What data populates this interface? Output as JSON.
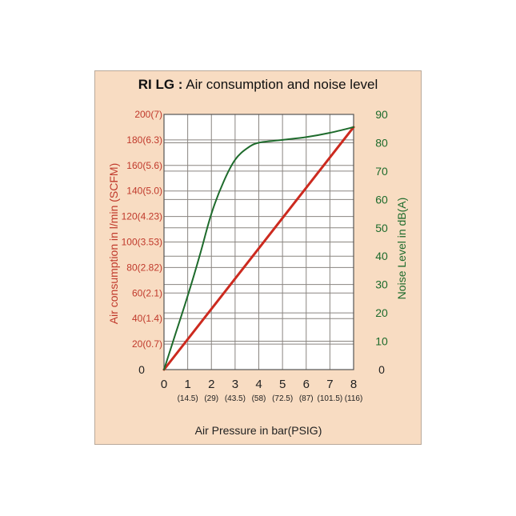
{
  "chart_data": {
    "type": "line",
    "title_bold": "RI LG :",
    "title_rest": "Air consumption and noise level",
    "xlabel": "Air  Pressure in bar(PSIG)",
    "ylabel_left": "Air  consumption in l/min (SCFM)",
    "ylabel_right": "Noise Level in dB(A)",
    "xlim": [
      0,
      8
    ],
    "ylim_left": [
      0,
      200
    ],
    "ylim_right": [
      0,
      90
    ],
    "x_ticks": [
      "0",
      "1",
      "2",
      "3",
      "4",
      "5",
      "6",
      "7",
      "8"
    ],
    "x_ticks_psig": [
      "(14.5)",
      "(29)",
      "(43.5)",
      "(58)",
      "(72.5)",
      "(87)",
      "(101.5)",
      "(116)"
    ],
    "y_ticks_left": [
      "0",
      "20(0.7)",
      "40(1.4)",
      "60(2.1)",
      "80(2.82)",
      "100(3.53)",
      "120(4.23)",
      "140(5.0)",
      "160(5.6)",
      "180(6.3)",
      "200(7)"
    ],
    "y_ticks_right": [
      "0",
      "10",
      "20",
      "30",
      "40",
      "50",
      "60",
      "70",
      "80",
      "90"
    ],
    "grid": true,
    "series": [
      {
        "axis": "left",
        "color": "#cc2a1f",
        "x": [
          0,
          8
        ],
        "y": [
          0,
          190
        ]
      },
      {
        "axis": "right",
        "color": "#1e6b2c",
        "x": [
          0,
          0.5,
          1,
          1.5,
          2,
          2.5,
          3,
          3.5,
          4,
          5,
          6,
          7,
          8
        ],
        "y": [
          0,
          13,
          26,
          40,
          55,
          66,
          74,
          78,
          80,
          81,
          82,
          83.5,
          85.5
        ]
      }
    ],
    "colors": {
      "left_axis": "#c0392b",
      "right_axis": "#1e6b2c",
      "panel": "#f8dcc2",
      "grid": "#8a8580"
    }
  }
}
